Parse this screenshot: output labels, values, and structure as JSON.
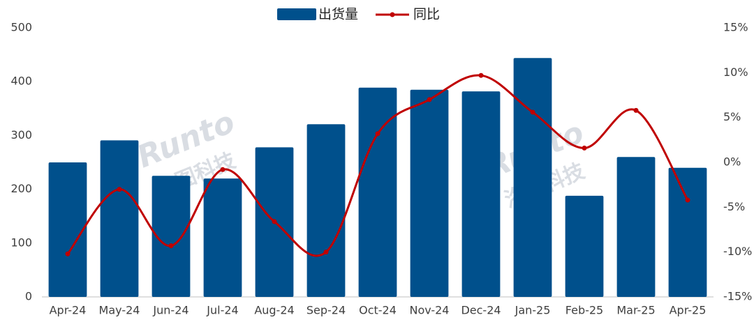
{
  "chart_data": {
    "type": "bar-line",
    "categories": [
      "Apr-24",
      "May-24",
      "Jun-24",
      "Jul-24",
      "Aug-24",
      "Sep-24",
      "Oct-24",
      "Nov-24",
      "Dec-24",
      "Jan-25",
      "Feb-25",
      "Mar-25",
      "Apr-25"
    ],
    "series": [
      {
        "name": "出货量",
        "type": "bar",
        "color": "#00508c",
        "values": [
          250,
          291,
          225,
          220,
          278,
          321,
          389,
          385,
          382,
          444,
          188,
          260,
          240
        ]
      },
      {
        "name": "同比",
        "type": "line",
        "axis": "y2",
        "color": "#c00000",
        "values": [
          -10.2,
          -3.0,
          -9.3,
          -0.8,
          -6.6,
          -10.0,
          3.2,
          7.0,
          9.7,
          5.6,
          1.6,
          5.8,
          -4.2
        ]
      }
    ],
    "ylim": [
      0,
      500
    ],
    "yticks": [
      0,
      100,
      200,
      300,
      400,
      500
    ],
    "y2lim": [
      -15,
      15
    ],
    "y2ticks": [
      {
        "value": -15,
        "label": "-15%"
      },
      {
        "value": -10,
        "label": "-10%"
      },
      {
        "value": -5,
        "label": "-5%"
      },
      {
        "value": 0,
        "label": "0%"
      },
      {
        "value": 5,
        "label": "5%"
      },
      {
        "value": 10,
        "label": "10%"
      },
      {
        "value": 15,
        "label": "15%"
      }
    ],
    "watermark": {
      "brand": "Runto",
      "name": "洛图科技"
    }
  }
}
